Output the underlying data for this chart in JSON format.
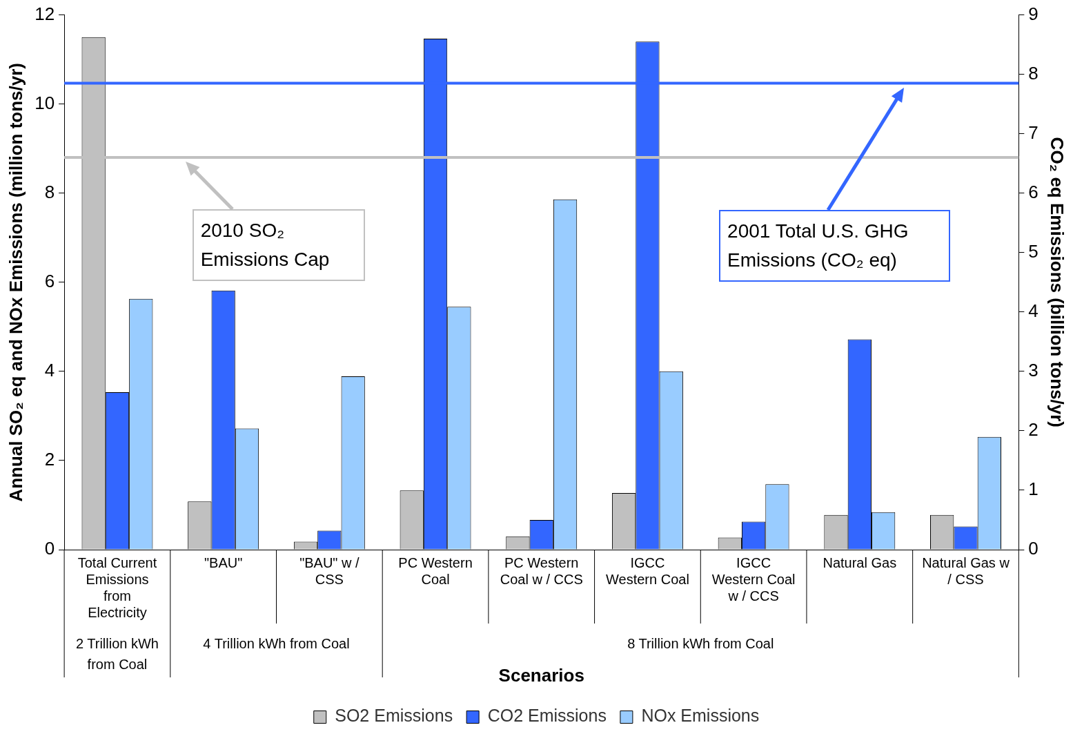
{
  "chart_data": {
    "type": "bar",
    "categories": [
      "Total Current Emissions from Electricity",
      "\"BAU\"",
      "\"BAU\" w / CSS",
      "PC Western Coal",
      "PC Western Coal w / CCS",
      "IGCC Western Coal",
      "IGCC Western Coal w / CCS",
      "Natural Gas",
      "Natural Gas w / CSS"
    ],
    "series": [
      {
        "name": "SO2 Emissions",
        "color": "#c0c0c0",
        "values": [
          11.5,
          1.08,
          0.18,
          1.33,
          0.3,
          1.27,
          0.27,
          0.78,
          0.78
        ]
      },
      {
        "name": "CO2 Emissions",
        "color": "#3366ff",
        "axis": "y2",
        "values": [
          2.65,
          4.36,
          0.32,
          8.6,
          0.5,
          8.55,
          0.47,
          3.54,
          0.39
        ]
      },
      {
        "name": "NOx Emissions",
        "color": "#99ccff",
        "values": [
          5.63,
          2.72,
          3.89,
          5.45,
          7.86,
          4.0,
          1.47,
          0.84,
          2.53
        ]
      }
    ],
    "xlabel": "Scenarios",
    "ylabel": "Annual SO₂ eq and NOx Emissions (million tons/yr)",
    "y2label": "CO₂ eq Emissions (billion tons/yr)",
    "ylim": [
      0,
      12
    ],
    "yticks": [
      0,
      2,
      4,
      6,
      8,
      10,
      12
    ],
    "y2lim": [
      0,
      9
    ],
    "y2ticks": [
      0,
      1,
      2,
      3,
      4,
      5,
      6,
      7,
      8,
      9
    ],
    "ref_lines": [
      {
        "axis": "y",
        "value": 8.8,
        "color": "#c0c0c0"
      },
      {
        "axis": "y2",
        "value": 7.85,
        "color": "#3366ff"
      }
    ],
    "annotations": [
      "2 Trillion kWh from Coal",
      "4 Trillion kWh from Coal",
      "8 Trillion kWh from Coal",
      "2010 SO₂ Emissions Cap",
      "2001 Total U.S. GHG Emissions (CO₂ eq)"
    ],
    "grid": false,
    "legend": "bottom"
  }
}
